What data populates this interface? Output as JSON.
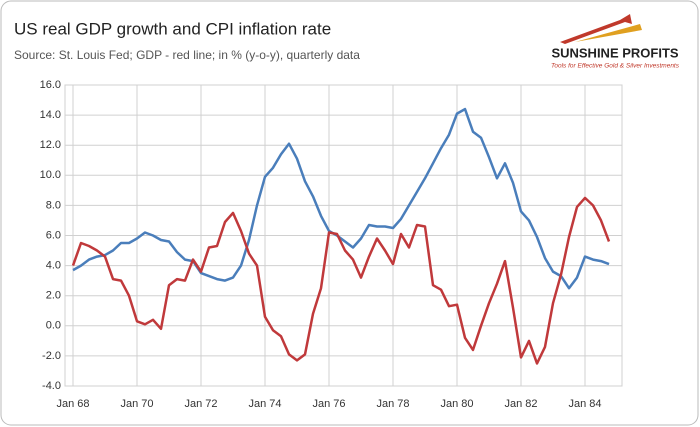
{
  "chart_data": {
    "type": "line",
    "title": "US real GDP growth and CPI inflation rate",
    "subtitle": "Source: St. Louis Fed; GDP - red line; in % (y-o-y), quarterly data",
    "logo": {
      "name": "SUNSHINE PROFITS",
      "tagline": "Tools for Effective Gold & Silver Investments"
    },
    "categories": [
      "Jan 68",
      null,
      null,
      null,
      null,
      null,
      null,
      null,
      "Jan 70",
      null,
      null,
      null,
      null,
      null,
      null,
      null,
      "Jan 72",
      null,
      null,
      null,
      null,
      null,
      null,
      null,
      "Jan 74",
      null,
      null,
      null,
      null,
      null,
      null,
      null,
      "Jan 76",
      null,
      null,
      null,
      null,
      null,
      null,
      null,
      "Jan 78",
      null,
      null,
      null,
      null,
      null,
      null,
      null,
      "Jan 80",
      null,
      null,
      null,
      null,
      null,
      null,
      null,
      "Jan 82",
      null,
      null,
      null,
      null,
      null,
      null,
      null,
      "Jan 84",
      null,
      null,
      null
    ],
    "series": [
      {
        "name": "CPI",
        "color": "#4a7ebb",
        "values": [
          3.7,
          4.0,
          4.4,
          4.6,
          4.7,
          5.0,
          5.5,
          5.5,
          5.8,
          6.2,
          6.0,
          5.7,
          5.6,
          4.9,
          4.4,
          4.3,
          3.5,
          3.3,
          3.1,
          3.0,
          3.2,
          4.0,
          5.7,
          8.0,
          9.9,
          10.5,
          11.4,
          12.1,
          11.1,
          9.6,
          8.6,
          7.3,
          6.3,
          6.0,
          5.6,
          5.2,
          5.8,
          6.7,
          6.6,
          6.6,
          6.5,
          7.1,
          8.0,
          8.9,
          9.8,
          10.8,
          11.8,
          12.7,
          14.1,
          14.4,
          12.9,
          12.5,
          11.2,
          9.8,
          10.8,
          9.5,
          7.6,
          7.0,
          5.9,
          4.5,
          3.6,
          3.3,
          2.5,
          3.2,
          4.6,
          4.4,
          4.3,
          4.1
        ]
      },
      {
        "name": "GDP",
        "color": "#c0393b",
        "values": [
          4.0,
          5.5,
          5.3,
          5.0,
          4.6,
          3.1,
          3.0,
          2.0,
          0.3,
          0.1,
          0.4,
          -0.2,
          2.7,
          3.1,
          3.0,
          4.4,
          3.6,
          5.2,
          5.3,
          6.9,
          7.5,
          6.3,
          4.8,
          4.0,
          0.6,
          -0.3,
          -0.7,
          -1.9,
          -2.3,
          -1.9,
          0.8,
          2.5,
          6.2,
          6.1,
          5.0,
          4.4,
          3.2,
          4.6,
          5.8,
          5.0,
          4.1,
          6.1,
          5.2,
          6.7,
          6.6,
          2.7,
          2.4,
          1.3,
          1.4,
          -0.8,
          -1.6,
          0.0,
          1.5,
          2.8,
          4.3,
          1.2,
          -2.1,
          -1.0,
          -2.5,
          -1.4,
          1.5,
          3.4,
          5.9,
          7.9,
          8.5,
          8.0,
          7.0,
          5.6
        ]
      }
    ],
    "ylim": [
      -4,
      16
    ],
    "yticks": [
      {
        "value": -4,
        "label": "-4.0"
      },
      {
        "value": -2,
        "label": "-2.0"
      },
      {
        "value": 0,
        "label": "0.0"
      },
      {
        "value": 2,
        "label": "2.0"
      },
      {
        "value": 4,
        "label": "4.0"
      },
      {
        "value": 6,
        "label": "6.0"
      },
      {
        "value": 8,
        "label": "8.0"
      },
      {
        "value": 10,
        "label": "10.0"
      },
      {
        "value": 12,
        "label": "12.0"
      },
      {
        "value": 14,
        "label": "14.0"
      },
      {
        "value": 16,
        "label": "16.0"
      }
    ],
    "grid": true
  }
}
